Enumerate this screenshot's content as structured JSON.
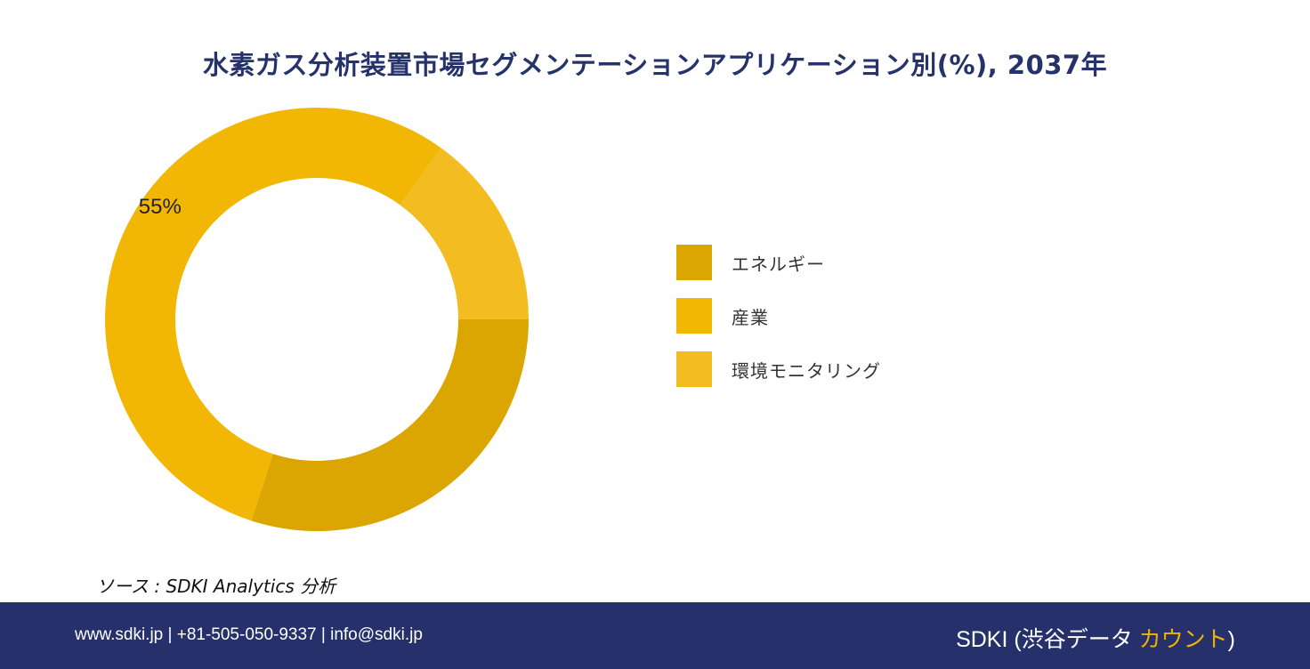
{
  "title": "水素ガス分析装置市場セグメンテーションアプリケーション別(%), 2037年",
  "chart_data": {
    "type": "pie",
    "donut": true,
    "start": "top-right quadrant, clockwise",
    "slices": [
      {
        "label": "エネルギー",
        "value": 30,
        "color": "#dba502"
      },
      {
        "label": "産業",
        "value": 55,
        "color": "#f2b705"
      },
      {
        "label": "環境モニタリング",
        "value": 15,
        "color": "#f3bc20"
      }
    ],
    "data_labels": [
      {
        "series": "産業",
        "text": "55%"
      }
    ],
    "legend_position": "right"
  },
  "source": "ソース : SDKI Analytics 分析",
  "footer": {
    "contact": "www.sdki.jp | +81-505-050-9337 | info@sdki.jp",
    "brand_prefix": "SDKI (渋谷データ ",
    "brand_accent": "カウント",
    "brand_suffix": ")"
  }
}
